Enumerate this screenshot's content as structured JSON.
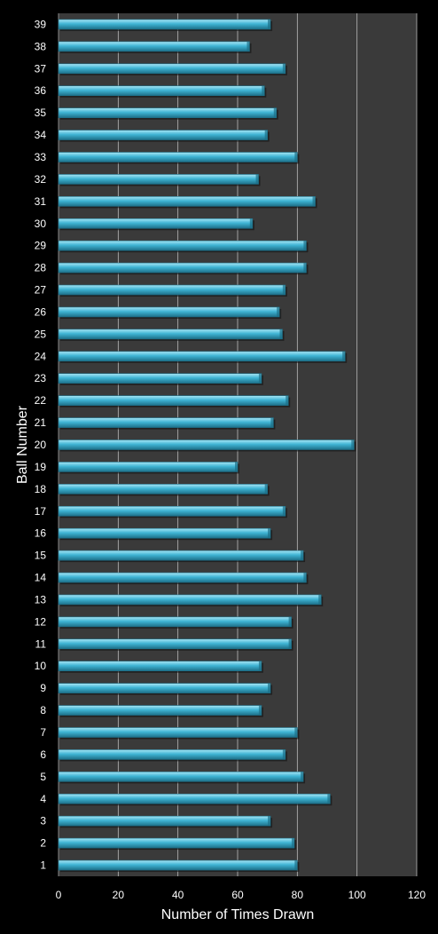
{
  "chart_data": {
    "type": "bar",
    "orientation": "horizontal",
    "title": "",
    "xlabel": "Number of Times Drawn",
    "ylabel": "Ball Number",
    "xlim": [
      0,
      120
    ],
    "xticks": [
      0,
      20,
      40,
      60,
      80,
      100,
      120
    ],
    "grid": true,
    "legend": "none",
    "categories": [
      "1",
      "2",
      "3",
      "4",
      "5",
      "6",
      "7",
      "8",
      "9",
      "10",
      "11",
      "12",
      "13",
      "14",
      "15",
      "16",
      "17",
      "18",
      "19",
      "20",
      "21",
      "22",
      "23",
      "24",
      "25",
      "26",
      "27",
      "28",
      "29",
      "30",
      "31",
      "32",
      "33",
      "34",
      "35",
      "36",
      "37",
      "38",
      "39"
    ],
    "values": [
      80,
      79,
      71,
      91,
      82,
      76,
      80,
      68,
      71,
      68,
      78,
      78,
      88,
      83,
      82,
      71,
      76,
      70,
      60,
      99,
      72,
      77,
      68,
      96,
      75,
      74,
      76,
      83,
      83,
      65,
      86,
      67,
      80,
      70,
      73,
      69,
      76,
      64,
      71
    ],
    "colors": {
      "bar": "#3fb4d4",
      "bar_highlight": "#a8e6f5",
      "bar_shadow": "#1d6f88",
      "plot_background": "#3a3a3a",
      "page_background": "#000000",
      "gridline": "#bbbbbb",
      "text": "#ffffff"
    }
  }
}
